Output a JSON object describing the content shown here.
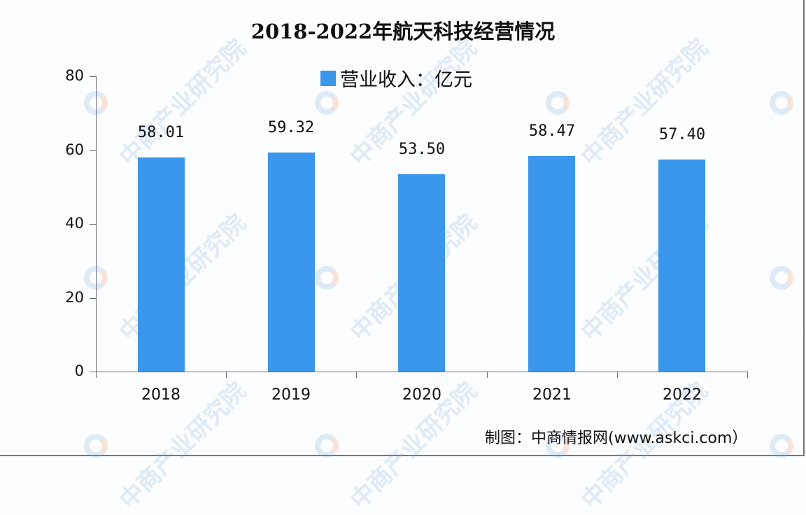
{
  "chart_data": {
    "type": "bar",
    "title": "2018-2022年航天科技经营情况",
    "categories": [
      "2018",
      "2019",
      "2020",
      "2021",
      "2022"
    ],
    "series": [
      {
        "name": "营业收入：亿元",
        "values": [
          58.01,
          59.32,
          53.5,
          58.47,
          57.4
        ],
        "color": "#3a97ec"
      }
    ],
    "value_labels": [
      "58.01",
      "59.32",
      "53.50",
      "58.47",
      "57.40"
    ],
    "xlabel": "",
    "ylabel": "",
    "ylim": [
      0,
      80
    ],
    "yticks": [
      0,
      20,
      40,
      60,
      80
    ],
    "grid": false,
    "legend_position": "top-center"
  },
  "title": "2018-2022年航天科技经营情况",
  "legend": {
    "label": "营业收入：亿元",
    "color": "#3a97ec"
  },
  "y_axis": {
    "ticks": [
      "80",
      "60",
      "40",
      "20",
      "0"
    ]
  },
  "source": "制图：中商情报网(www.askci.com）",
  "watermark": {
    "text": "中商产业研究院"
  }
}
